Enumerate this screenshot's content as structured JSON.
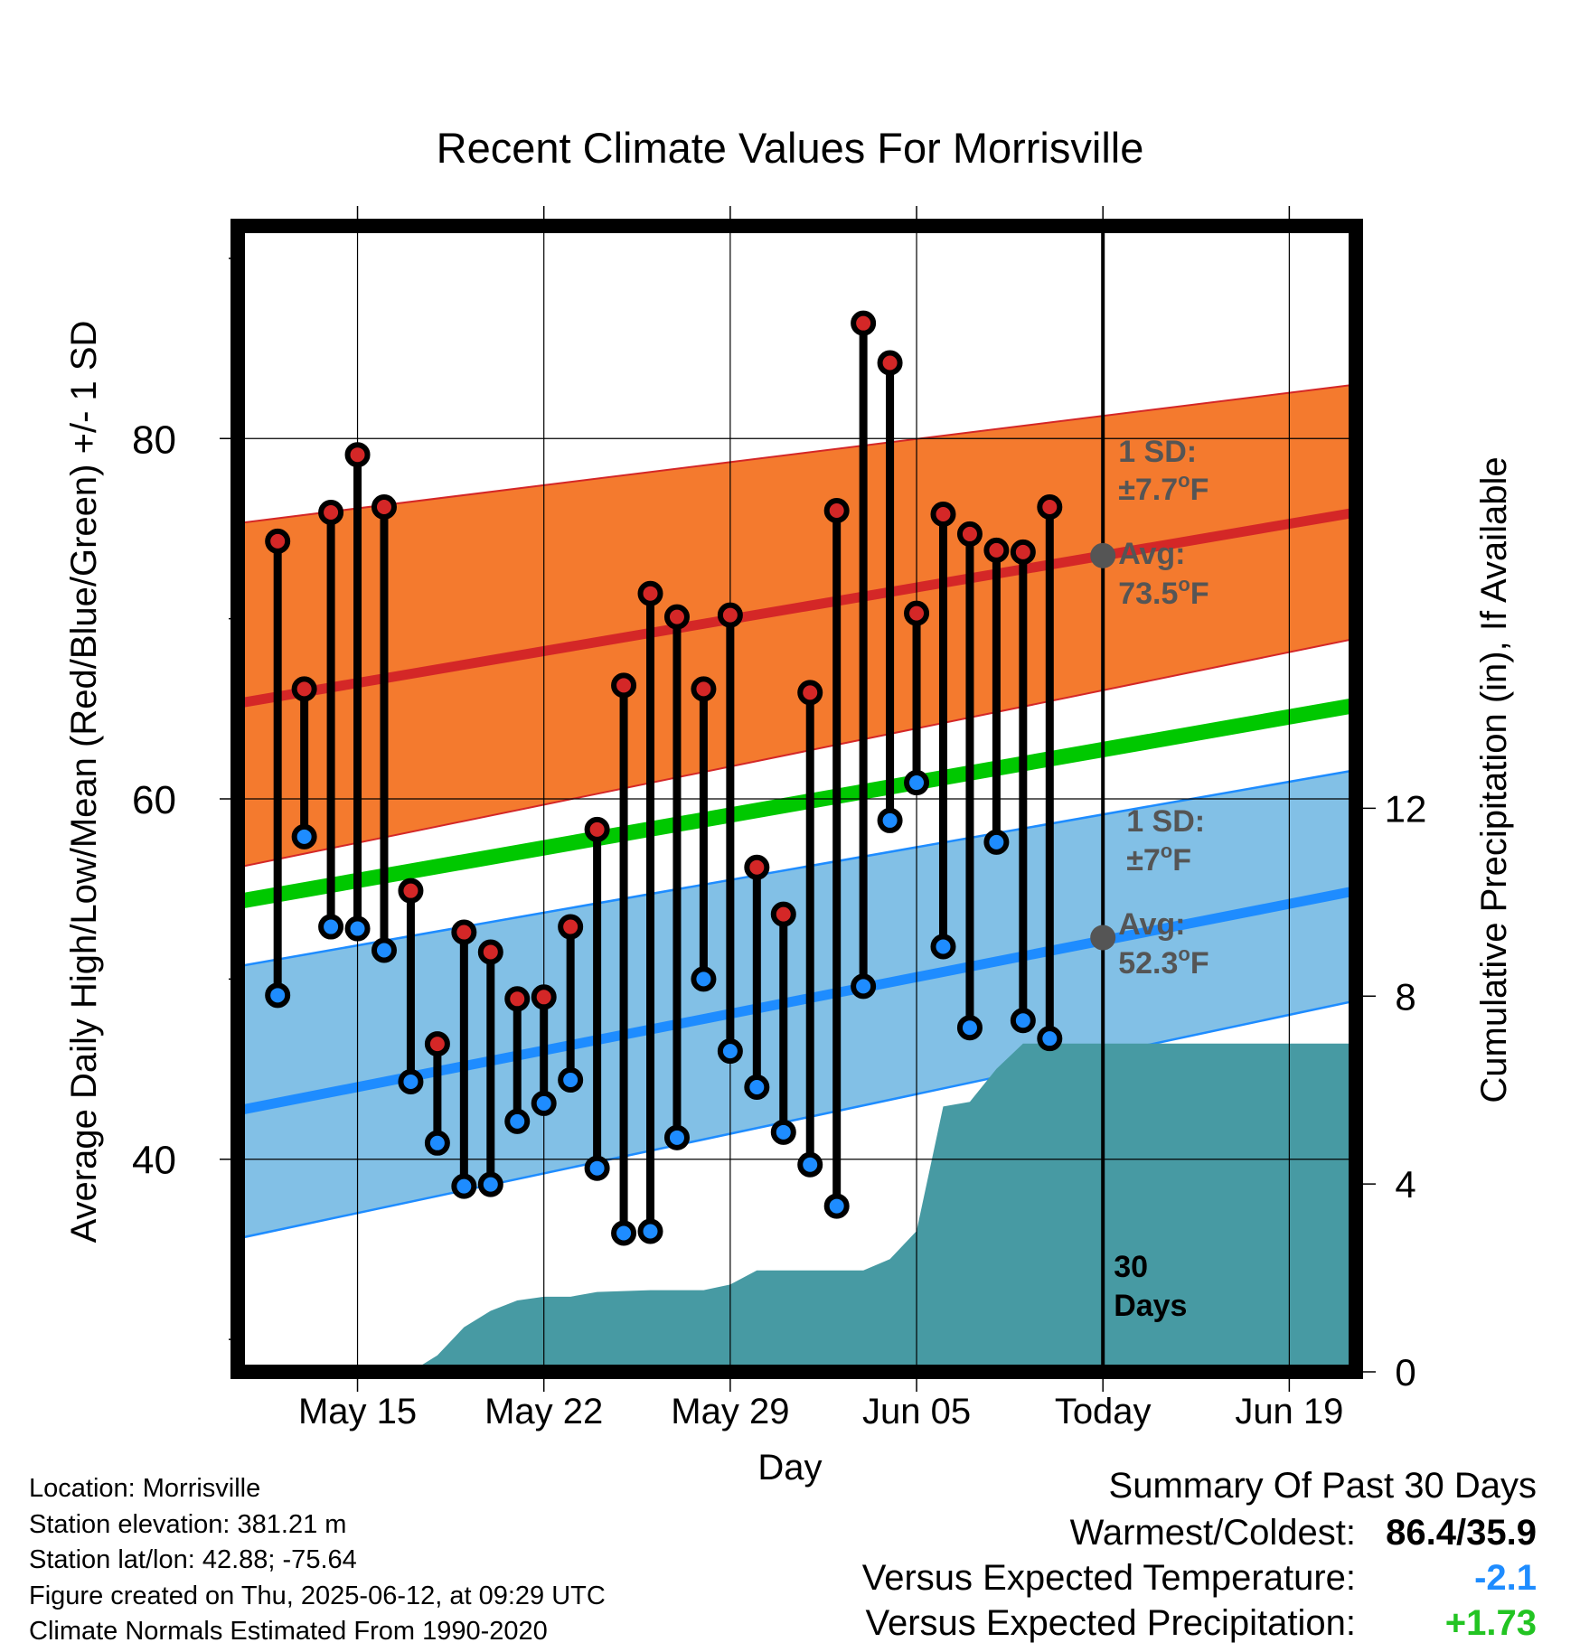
{
  "chart_data": {
    "type": "line",
    "title": "Recent Climate Values For Morrisville",
    "xlabel": "Day",
    "ylabel": "Average Daily High/Low/Mean (Red/Blue/Green) +/- 1 SD",
    "y2label": "Cumulative Precipitation (in), If Available",
    "x_range_days": [
      -32.5,
      9.5
    ],
    "ylim": [
      28.2,
      91.8
    ],
    "y2lim": [
      0,
      24.4
    ],
    "yticks": [
      40,
      60,
      80
    ],
    "y2ticks": [
      0,
      4,
      8,
      12
    ],
    "xtick_labels": [
      "May 15",
      "May 22",
      "May 29",
      "Jun 05",
      "Today",
      "Jun 19"
    ],
    "today_marker_label": "30\nDays",
    "colors": {
      "high_band": "#f47a2e",
      "high_line": "#d42727",
      "mean_line": "#00c800",
      "low_band": "#82c0e6",
      "low_line": "#1e8cff",
      "precip_fill": "#479aa3",
      "high_marker": "#d42727",
      "low_marker": "#1e8cff"
    },
    "normals": {
      "high_avg": [
        65.3,
        75.9
      ],
      "high_sd_upper": [
        75.3,
        83.0
      ],
      "high_sd_lower": [
        56.2,
        68.9
      ],
      "mean_avg": [
        54.3,
        65.2
      ],
      "low_avg": [
        42.7,
        54.9
      ],
      "low_sd_upper": [
        50.7,
        61.6
      ],
      "low_sd_lower": [
        35.6,
        48.8
      ]
    },
    "series": [
      {
        "name": "High",
        "days": [
          -31,
          -30,
          -29,
          -28,
          -27,
          -26,
          -25,
          -24,
          -23,
          -22,
          -21,
          -20,
          -19,
          -18,
          -17,
          -16,
          -15,
          -14,
          -13,
          -12,
          -11,
          -10,
          -9,
          -8,
          -7,
          -6,
          -5,
          -4,
          -3,
          -2,
          -1
        ],
        "values": [
          74.3,
          66.1,
          75.9,
          79.1,
          76.2,
          54.9,
          46.4,
          52.6,
          51.5,
          48.9,
          49.0,
          52.9,
          58.3,
          66.3,
          71.4,
          70.1,
          66.1,
          70.2,
          56.2,
          53.6,
          65.9,
          76.0,
          86.4,
          84.2,
          70.3,
          75.8,
          74.7,
          73.8,
          73.7,
          76.2,
          null
        ]
      },
      {
        "name": "Low",
        "days": [
          -31,
          -30,
          -29,
          -28,
          -27,
          -26,
          -25,
          -24,
          -23,
          -22,
          -21,
          -20,
          -19,
          -18,
          -17,
          -16,
          -15,
          -14,
          -13,
          -12,
          -11,
          -10,
          -9,
          -8,
          -7,
          -6,
          -5,
          -4,
          -3,
          -2,
          -1
        ],
        "values": [
          49.1,
          57.9,
          52.9,
          52.8,
          51.6,
          44.3,
          40.9,
          38.5,
          38.6,
          42.1,
          43.1,
          44.4,
          39.5,
          35.9,
          36.0,
          41.2,
          50.0,
          46.0,
          44.0,
          41.5,
          39.7,
          37.4,
          49.6,
          58.8,
          60.9,
          51.8,
          47.3,
          57.6,
          47.7,
          46.7,
          null
        ]
      }
    ],
    "precip": {
      "days": [
        -31,
        -28,
        -27,
        -26,
        -25,
        -24,
        -23,
        -22,
        -21,
        -20,
        -19,
        -17,
        -16,
        -15,
        -14,
        -13,
        -12,
        -11,
        -10,
        -9,
        -8,
        -7,
        -6,
        -5,
        -4,
        -3,
        -2,
        -1,
        0,
        9.5
      ],
      "values": [
        0,
        0,
        0,
        0,
        0.35,
        0.95,
        1.3,
        1.52,
        1.6,
        1.6,
        1.7,
        1.74,
        1.74,
        1.74,
        1.86,
        2.16,
        2.16,
        2.16,
        2.16,
        2.16,
        2.4,
        3.0,
        5.65,
        5.75,
        6.45,
        6.99,
        6.99,
        6.99,
        6.99,
        6.99
      ]
    },
    "annotations": {
      "high_sd": "1 SD:",
      "high_sd_value": "±7.7",
      "high_avg_label": "Avg:",
      "high_avg_value": "73.5",
      "low_sd": "1 SD:",
      "low_sd_value": "±7",
      "low_avg_label": "Avg:",
      "low_avg_value": "52.3",
      "unit": "F",
      "degree": "o",
      "high_avg_temp": 73.5,
      "low_avg_temp": 52.3
    }
  },
  "footer": {
    "location": "Location: Morrisville",
    "elevation": "Station elevation: 381.21 m",
    "latlon": "Station lat/lon: 42.88; -75.64",
    "created": "Figure created on Thu, 2025-06-12, at 09:29 UTC",
    "normals": "Climate Normals Estimated From 1990-2020"
  },
  "summary": {
    "title": "Summary Of Past 30 Days",
    "warmest_coldest_label": "Warmest/Coldest:",
    "warmest_coldest_value": "86.4/35.9",
    "temp_label": "Versus Expected Temperature:",
    "temp_value": "-2.1",
    "temp_color": "#1e8cff",
    "precip_label": "Versus Expected Precipitation:",
    "precip_value": "+1.73",
    "precip_color": "#22c422"
  }
}
